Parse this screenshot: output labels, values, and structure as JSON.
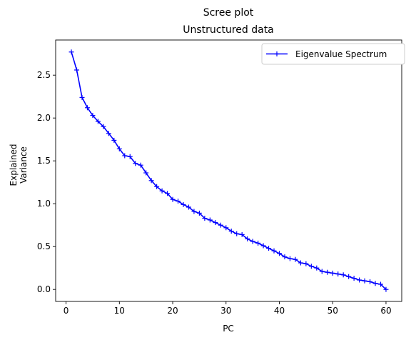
{
  "chart_data": {
    "type": "line",
    "title": "Scree plot",
    "subtitle": "Unstructured data",
    "xlabel": "PC",
    "ylabel_lines": [
      "Explained",
      "Variance"
    ],
    "xlim": [
      -1.95,
      62.95
    ],
    "ylim": [
      -0.14,
      2.91
    ],
    "xticks": [
      0,
      10,
      20,
      30,
      40,
      50,
      60
    ],
    "xtick_labels": [
      "0",
      "10",
      "20",
      "30",
      "40",
      "50",
      "60"
    ],
    "yticks": [
      0.0,
      0.5,
      1.0,
      1.5,
      2.0,
      2.5
    ],
    "ytick_labels": [
      "0.0",
      "0.5",
      "1.0",
      "1.5",
      "2.0",
      "2.5"
    ],
    "grid": false,
    "legend_position": "top-right",
    "series": [
      {
        "name": "Eigenvalue Spectrum",
        "color": "#0000ff",
        "marker": "plus",
        "x": [
          1,
          2,
          3,
          4,
          5,
          6,
          7,
          8,
          9,
          10,
          11,
          12,
          13,
          14,
          15,
          16,
          17,
          18,
          19,
          20,
          21,
          22,
          23,
          24,
          25,
          26,
          27,
          28,
          29,
          30,
          31,
          32,
          33,
          34,
          35,
          36,
          37,
          38,
          39,
          40,
          41,
          42,
          43,
          44,
          45,
          46,
          47,
          48,
          49,
          50,
          51,
          52,
          53,
          54,
          55,
          56,
          57,
          58,
          59,
          60
        ],
        "y": [
          2.77,
          2.56,
          2.24,
          2.12,
          2.03,
          1.96,
          1.9,
          1.82,
          1.74,
          1.64,
          1.56,
          1.55,
          1.47,
          1.45,
          1.36,
          1.27,
          1.2,
          1.15,
          1.12,
          1.05,
          1.03,
          0.99,
          0.96,
          0.91,
          0.89,
          0.83,
          0.81,
          0.78,
          0.75,
          0.72,
          0.68,
          0.65,
          0.64,
          0.59,
          0.56,
          0.54,
          0.51,
          0.48,
          0.45,
          0.42,
          0.38,
          0.36,
          0.35,
          0.31,
          0.3,
          0.27,
          0.25,
          0.21,
          0.2,
          0.19,
          0.18,
          0.17,
          0.15,
          0.13,
          0.11,
          0.1,
          0.09,
          0.07,
          0.06,
          0.0
        ]
      }
    ]
  }
}
